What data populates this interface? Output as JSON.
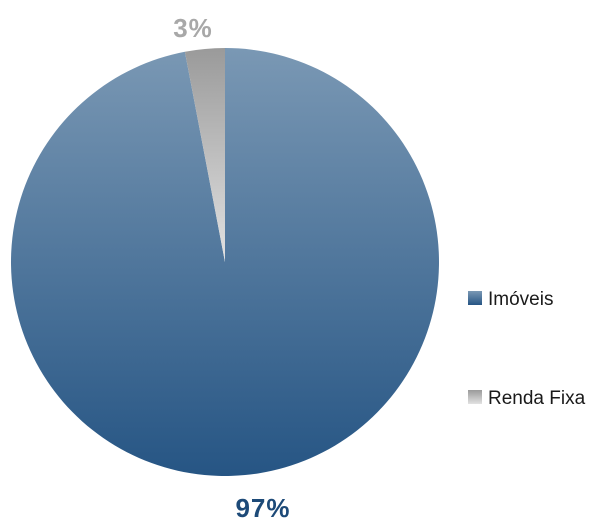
{
  "chart_data": {
    "type": "pie",
    "title": "",
    "categories": [
      "Imóveis",
      "Renda Fixa"
    ],
    "values": [
      97,
      3
    ],
    "unit": "%",
    "data_labels": [
      "97%",
      "3%"
    ],
    "start_angle_deg": 0,
    "direction": "clockwise",
    "legend_position": "right",
    "colors": {
      "Imóveis": {
        "top": "#7a98b4",
        "bottom": "#265584",
        "label": "#1d4a78"
      },
      "Renda Fixa": {
        "top": "#9a9a9a",
        "bottom": "#e2e2e2",
        "label": "#a8a8a8"
      }
    }
  }
}
